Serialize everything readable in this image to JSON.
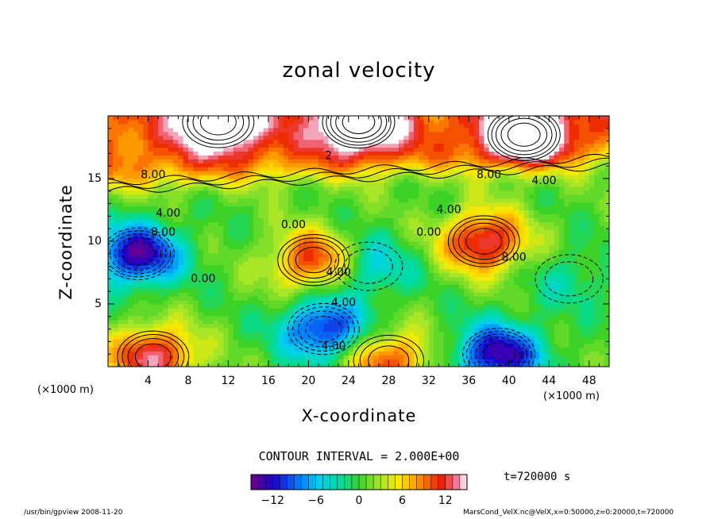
{
  "chart_data": {
    "type": "heatmap",
    "title": "zonal velocity",
    "xlabel": "X-coordinate",
    "ylabel": "Z-coordinate",
    "x_unit": "(×1000 m)",
    "y_unit": "(×1000 m)",
    "xlim": [
      0,
      50
    ],
    "ylim": [
      0,
      20
    ],
    "x_ticks": [
      "4",
      "8",
      "12",
      "16",
      "20",
      "24",
      "28",
      "32",
      "36",
      "40",
      "44",
      "48"
    ],
    "x_tick_values": [
      4,
      8,
      12,
      16,
      20,
      24,
      28,
      32,
      36,
      40,
      44,
      48
    ],
    "y_ticks": [
      "5",
      "10",
      "15"
    ],
    "y_tick_values": [
      5,
      10,
      15
    ],
    "colorbar": {
      "ticks": [
        "−12",
        "−6",
        "0",
        "6",
        "12"
      ],
      "tick_values": [
        -12,
        -6,
        0,
        6,
        12
      ],
      "range": [
        -15,
        15
      ]
    },
    "contour_interval_label": "CONTOUR INTERVAL = 2.000E+00",
    "time_label": "t=720000 s",
    "contour_labels": [
      {
        "text": "8.00",
        "x": 4.5,
        "z": 15.3
      },
      {
        "text": "4.00",
        "x": 6.0,
        "z": 12.2
      },
      {
        "text": "8.00",
        "x": 5.5,
        "z": 10.7
      },
      {
        "text": "0.00",
        "x": 9.5,
        "z": 7.0
      },
      {
        "text": "0.00",
        "x": 18.5,
        "z": 11.3
      },
      {
        "text": "4.00",
        "x": 23.0,
        "z": 7.5
      },
      {
        "text": "4.00",
        "x": 23.5,
        "z": 5.1
      },
      {
        "text": "4.00",
        "x": 22.5,
        "z": 1.6
      },
      {
        "text": "0.00",
        "x": 32.0,
        "z": 10.7
      },
      {
        "text": "4.00",
        "x": 34.0,
        "z": 12.5
      },
      {
        "text": "8.00",
        "x": 40.5,
        "z": 8.7
      },
      {
        "text": "8.00",
        "x": 38.0,
        "z": 15.3
      },
      {
        "text": "4.00",
        "x": 43.5,
        "z": 14.8
      },
      {
        "text": "2",
        "x": 22.0,
        "z": 16.8
      }
    ],
    "features": [
      {
        "x": 3.0,
        "z": 9.0,
        "value": -14
      },
      {
        "x": 20.5,
        "z": 8.5,
        "value": 11
      },
      {
        "x": 37.5,
        "z": 10.0,
        "value": 13
      },
      {
        "x": 21.5,
        "z": 3.0,
        "value": -12
      },
      {
        "x": 39.0,
        "z": 1.0,
        "value": -14
      },
      {
        "x": 4.5,
        "z": 0.8,
        "value": 13
      },
      {
        "x": 28.0,
        "z": 0.5,
        "value": 10
      },
      {
        "x": 46.0,
        "z": 7.0,
        "value": -3
      },
      {
        "x": 26.0,
        "z": 8.0,
        "value": -6
      },
      {
        "x": 41.5,
        "z": 18.5,
        "value": 15
      },
      {
        "x": 25.0,
        "z": 19.5,
        "value": 14
      },
      {
        "x": 11.0,
        "z": 19.5,
        "value": 13
      }
    ]
  },
  "footer": {
    "left": "/usr/bin/gpview  2008-11-20",
    "right": "MarsCond_VelX.nc@VelX,x=0:50000,z=0:20000,t=720000"
  }
}
